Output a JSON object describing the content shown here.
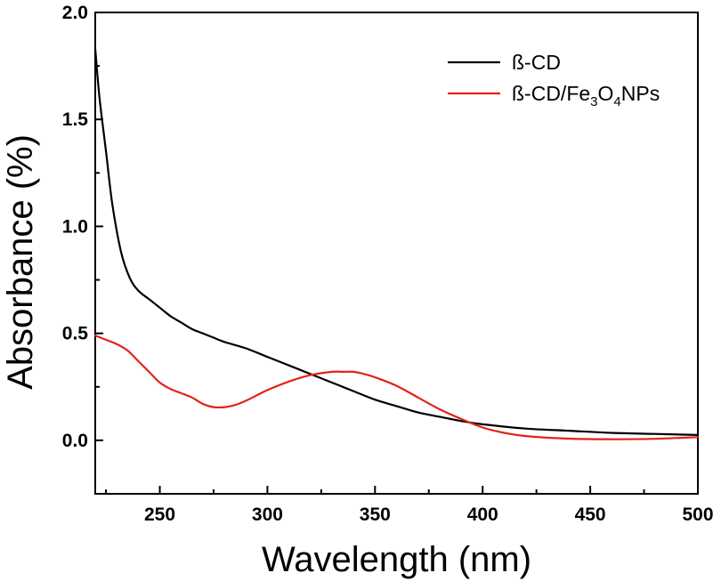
{
  "chart_data": {
    "type": "line",
    "xlabel": "Wavelength (nm)",
    "ylabel": "Absorbance (%)",
    "xlim": [
      220,
      500
    ],
    "ylim": [
      -0.25,
      2.0
    ],
    "x_ticks": [
      250,
      300,
      350,
      400,
      450,
      500
    ],
    "x_tick_labels": [
      "250",
      "300",
      "350",
      "400",
      "450",
      "500"
    ],
    "y_ticks": [
      0.0,
      0.5,
      1.0,
      1.5,
      2.0
    ],
    "y_tick_labels": [
      "0.0",
      "0.5",
      "1.0",
      "1.5",
      "2.0"
    ],
    "grid": false,
    "legend_position": "top-right",
    "series": [
      {
        "name": "ß-CD",
        "legend_parts": [
          {
            "text": "ß-CD",
            "sub": false
          }
        ],
        "color": "#000000",
        "x": [
          220,
          222,
          225,
          228,
          232,
          236,
          240,
          245,
          250,
          255,
          260,
          265,
          270,
          275,
          280,
          290,
          300,
          310,
          320,
          330,
          340,
          350,
          360,
          370,
          380,
          390,
          400,
          420,
          440,
          460,
          480,
          500
        ],
        "y": [
          1.83,
          1.6,
          1.35,
          1.1,
          0.88,
          0.76,
          0.7,
          0.66,
          0.62,
          0.58,
          0.55,
          0.52,
          0.5,
          0.48,
          0.46,
          0.43,
          0.39,
          0.35,
          0.31,
          0.27,
          0.23,
          0.19,
          0.16,
          0.13,
          0.11,
          0.09,
          0.075,
          0.055,
          0.045,
          0.035,
          0.03,
          0.025
        ]
      },
      {
        "name": "ß-CD/Fe3O4NPs",
        "legend_parts": [
          {
            "text": "ß-CD/Fe",
            "sub": false
          },
          {
            "text": "3",
            "sub": true
          },
          {
            "text": "O",
            "sub": false
          },
          {
            "text": "4",
            "sub": true
          },
          {
            "text": "NPs",
            "sub": false
          }
        ],
        "color": "#e2231a",
        "x": [
          220,
          225,
          230,
          235,
          240,
          245,
          250,
          255,
          260,
          265,
          270,
          275,
          280,
          285,
          290,
          295,
          300,
          310,
          320,
          330,
          335,
          340,
          345,
          350,
          360,
          370,
          380,
          390,
          400,
          410,
          420,
          440,
          460,
          480,
          500
        ],
        "y": [
          0.49,
          0.47,
          0.45,
          0.42,
          0.37,
          0.32,
          0.27,
          0.24,
          0.22,
          0.2,
          0.17,
          0.155,
          0.155,
          0.165,
          0.185,
          0.21,
          0.235,
          0.275,
          0.305,
          0.32,
          0.32,
          0.32,
          0.31,
          0.295,
          0.255,
          0.2,
          0.145,
          0.1,
          0.06,
          0.035,
          0.02,
          0.008,
          0.005,
          0.007,
          0.015
        ]
      }
    ]
  }
}
